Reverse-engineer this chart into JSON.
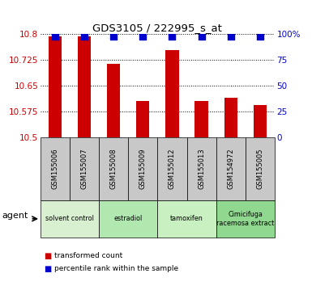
{
  "title": "GDS3105 / 222995_s_at",
  "samples": [
    "GSM155006",
    "GSM155007",
    "GSM155008",
    "GSM155009",
    "GSM155012",
    "GSM155013",
    "GSM154972",
    "GSM155005"
  ],
  "bar_values": [
    10.795,
    10.795,
    10.715,
    10.605,
    10.755,
    10.605,
    10.615,
    10.595
  ],
  "percentile_values": [
    98,
    98,
    98,
    98,
    98,
    98,
    98,
    98
  ],
  "ymin": 10.5,
  "ymax": 10.8,
  "yticks": [
    10.5,
    10.575,
    10.65,
    10.725,
    10.8
  ],
  "ytick_labels": [
    "10.5",
    "10.575",
    "10.65",
    "10.725",
    "10.8"
  ],
  "right_yticks": [
    0,
    25,
    50,
    75,
    100
  ],
  "right_ytick_labels": [
    "0",
    "25",
    "50",
    "75",
    "100%"
  ],
  "bar_color": "#cc0000",
  "dot_color": "#0000cc",
  "agent_groups": [
    {
      "label": "solvent control",
      "start": 0,
      "end": 2,
      "color": "#d8f0d0"
    },
    {
      "label": "estradiol",
      "start": 2,
      "end": 4,
      "color": "#b0e8b0"
    },
    {
      "label": "tamoxifen",
      "start": 4,
      "end": 6,
      "color": "#c8f0c0"
    },
    {
      "label": "Cimicifuga\nracemosa extract",
      "start": 6,
      "end": 8,
      "color": "#90d890"
    }
  ],
  "agent_label": "agent",
  "legend_bar_label": "transformed count",
  "legend_dot_label": "percentile rank within the sample",
  "left_label_color": "#cc0000",
  "right_label_color": "#0000cc",
  "grid_color": "#000000",
  "bg_color": "#ffffff",
  "sample_bg_color": "#c8c8c8",
  "bar_width": 0.45,
  "dot_size": 28,
  "dot_pct": 98
}
